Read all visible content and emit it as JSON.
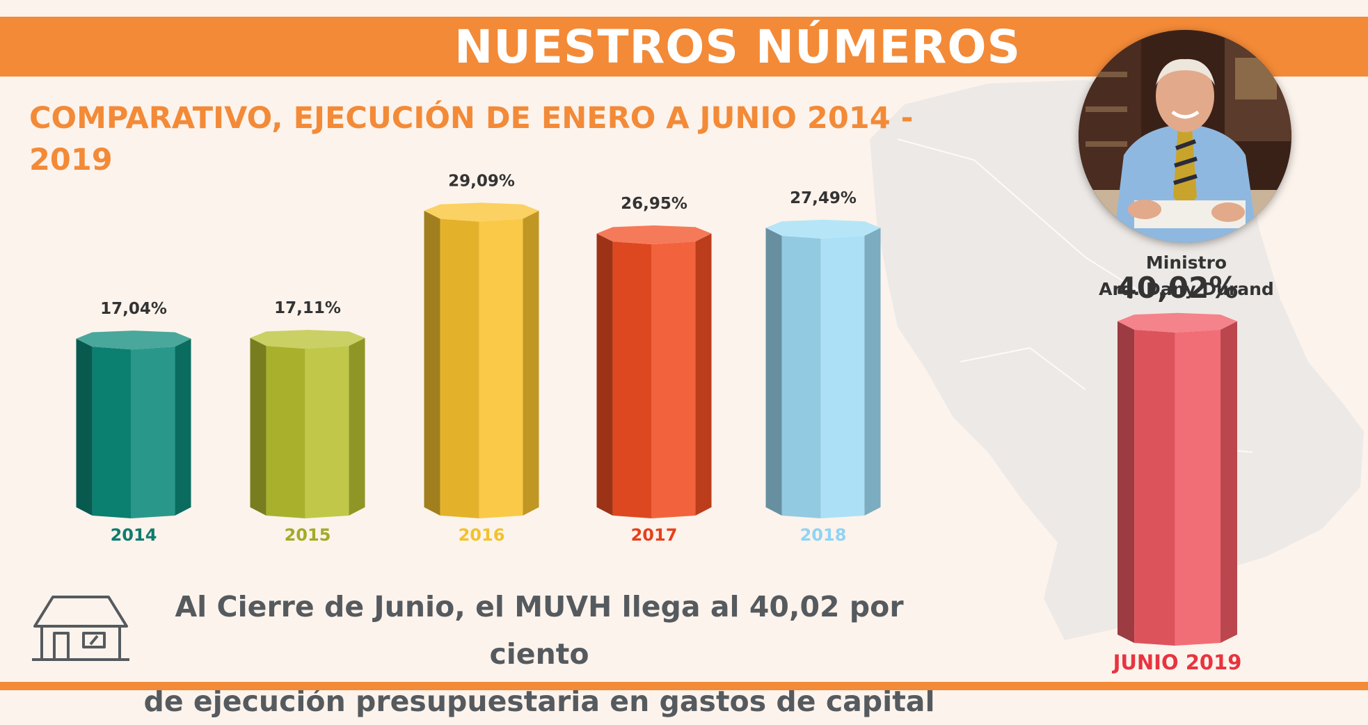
{
  "header": {
    "title": "NUESTROS NÚMEROS"
  },
  "colors": {
    "accent": "#f38a37",
    "background": "#fcf3ec",
    "text_dark": "#333333"
  },
  "minister": {
    "role": "Ministro",
    "name": "Arq. Dany Durand"
  },
  "footnote": {
    "line1": "Al Cierre de Junio, el MUVH llega al 40,02 por ciento",
    "line2": "de ejecución presupuestaria en gastos de capital",
    "icon": "house-icon"
  },
  "chart_data": {
    "type": "bar",
    "title": "COMPARATIVO, EJECUCIÓN DE ENERO A JUNIO 2014 - 2019",
    "categories": [
      "2014",
      "2015",
      "2016",
      "2017",
      "2018",
      "JUNIO 2019"
    ],
    "values": [
      17.04,
      17.11,
      29.09,
      26.95,
      27.49,
      40.02
    ],
    "value_labels": [
      "17,04%",
      "17,11%",
      "29,09%",
      "26,95%",
      "27,49%",
      "40,02%"
    ],
    "unit": "%",
    "colors": [
      "#0c8a7a",
      "#b8c030",
      "#f8c22e",
      "#f04e23",
      "#9fdcf6",
      "#f05a64"
    ],
    "label_colors": [
      "#0e7c6e",
      "#a2ab27",
      "#f2c22c",
      "#e6401c",
      "#8fd4f4",
      "#e8343f"
    ],
    "style": "3d-octagonal-cylinders",
    "grid": false,
    "legend": "none"
  }
}
